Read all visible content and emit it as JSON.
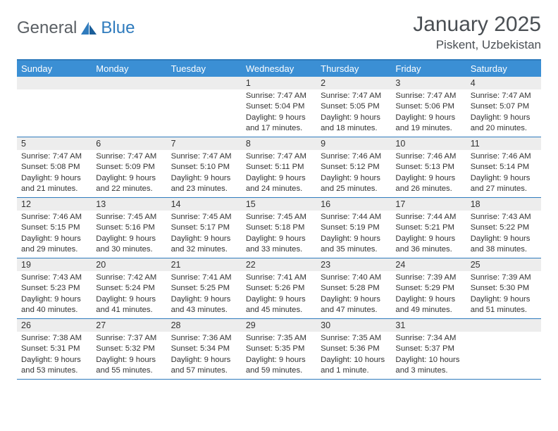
{
  "brand": {
    "part1": "General",
    "part2": "Blue"
  },
  "title": "January 2025",
  "location": "Piskent, Uzbekistan",
  "colors": {
    "header_bg": "#3b8fd4",
    "rule": "#2f7bbd",
    "daynum_bg": "#ededed",
    "text": "#333333",
    "title_text": "#4a4f54"
  },
  "day_names": [
    "Sunday",
    "Monday",
    "Tuesday",
    "Wednesday",
    "Thursday",
    "Friday",
    "Saturday"
  ],
  "weeks": [
    [
      {
        "n": "",
        "lines": []
      },
      {
        "n": "",
        "lines": []
      },
      {
        "n": "",
        "lines": []
      },
      {
        "n": "1",
        "lines": [
          "Sunrise: 7:47 AM",
          "Sunset: 5:04 PM",
          "Daylight: 9 hours",
          "and 17 minutes."
        ]
      },
      {
        "n": "2",
        "lines": [
          "Sunrise: 7:47 AM",
          "Sunset: 5:05 PM",
          "Daylight: 9 hours",
          "and 18 minutes."
        ]
      },
      {
        "n": "3",
        "lines": [
          "Sunrise: 7:47 AM",
          "Sunset: 5:06 PM",
          "Daylight: 9 hours",
          "and 19 minutes."
        ]
      },
      {
        "n": "4",
        "lines": [
          "Sunrise: 7:47 AM",
          "Sunset: 5:07 PM",
          "Daylight: 9 hours",
          "and 20 minutes."
        ]
      }
    ],
    [
      {
        "n": "5",
        "lines": [
          "Sunrise: 7:47 AM",
          "Sunset: 5:08 PM",
          "Daylight: 9 hours",
          "and 21 minutes."
        ]
      },
      {
        "n": "6",
        "lines": [
          "Sunrise: 7:47 AM",
          "Sunset: 5:09 PM",
          "Daylight: 9 hours",
          "and 22 minutes."
        ]
      },
      {
        "n": "7",
        "lines": [
          "Sunrise: 7:47 AM",
          "Sunset: 5:10 PM",
          "Daylight: 9 hours",
          "and 23 minutes."
        ]
      },
      {
        "n": "8",
        "lines": [
          "Sunrise: 7:47 AM",
          "Sunset: 5:11 PM",
          "Daylight: 9 hours",
          "and 24 minutes."
        ]
      },
      {
        "n": "9",
        "lines": [
          "Sunrise: 7:46 AM",
          "Sunset: 5:12 PM",
          "Daylight: 9 hours",
          "and 25 minutes."
        ]
      },
      {
        "n": "10",
        "lines": [
          "Sunrise: 7:46 AM",
          "Sunset: 5:13 PM",
          "Daylight: 9 hours",
          "and 26 minutes."
        ]
      },
      {
        "n": "11",
        "lines": [
          "Sunrise: 7:46 AM",
          "Sunset: 5:14 PM",
          "Daylight: 9 hours",
          "and 27 minutes."
        ]
      }
    ],
    [
      {
        "n": "12",
        "lines": [
          "Sunrise: 7:46 AM",
          "Sunset: 5:15 PM",
          "Daylight: 9 hours",
          "and 29 minutes."
        ]
      },
      {
        "n": "13",
        "lines": [
          "Sunrise: 7:45 AM",
          "Sunset: 5:16 PM",
          "Daylight: 9 hours",
          "and 30 minutes."
        ]
      },
      {
        "n": "14",
        "lines": [
          "Sunrise: 7:45 AM",
          "Sunset: 5:17 PM",
          "Daylight: 9 hours",
          "and 32 minutes."
        ]
      },
      {
        "n": "15",
        "lines": [
          "Sunrise: 7:45 AM",
          "Sunset: 5:18 PM",
          "Daylight: 9 hours",
          "and 33 minutes."
        ]
      },
      {
        "n": "16",
        "lines": [
          "Sunrise: 7:44 AM",
          "Sunset: 5:19 PM",
          "Daylight: 9 hours",
          "and 35 minutes."
        ]
      },
      {
        "n": "17",
        "lines": [
          "Sunrise: 7:44 AM",
          "Sunset: 5:21 PM",
          "Daylight: 9 hours",
          "and 36 minutes."
        ]
      },
      {
        "n": "18",
        "lines": [
          "Sunrise: 7:43 AM",
          "Sunset: 5:22 PM",
          "Daylight: 9 hours",
          "and 38 minutes."
        ]
      }
    ],
    [
      {
        "n": "19",
        "lines": [
          "Sunrise: 7:43 AM",
          "Sunset: 5:23 PM",
          "Daylight: 9 hours",
          "and 40 minutes."
        ]
      },
      {
        "n": "20",
        "lines": [
          "Sunrise: 7:42 AM",
          "Sunset: 5:24 PM",
          "Daylight: 9 hours",
          "and 41 minutes."
        ]
      },
      {
        "n": "21",
        "lines": [
          "Sunrise: 7:41 AM",
          "Sunset: 5:25 PM",
          "Daylight: 9 hours",
          "and 43 minutes."
        ]
      },
      {
        "n": "22",
        "lines": [
          "Sunrise: 7:41 AM",
          "Sunset: 5:26 PM",
          "Daylight: 9 hours",
          "and 45 minutes."
        ]
      },
      {
        "n": "23",
        "lines": [
          "Sunrise: 7:40 AM",
          "Sunset: 5:28 PM",
          "Daylight: 9 hours",
          "and 47 minutes."
        ]
      },
      {
        "n": "24",
        "lines": [
          "Sunrise: 7:39 AM",
          "Sunset: 5:29 PM",
          "Daylight: 9 hours",
          "and 49 minutes."
        ]
      },
      {
        "n": "25",
        "lines": [
          "Sunrise: 7:39 AM",
          "Sunset: 5:30 PM",
          "Daylight: 9 hours",
          "and 51 minutes."
        ]
      }
    ],
    [
      {
        "n": "26",
        "lines": [
          "Sunrise: 7:38 AM",
          "Sunset: 5:31 PM",
          "Daylight: 9 hours",
          "and 53 minutes."
        ]
      },
      {
        "n": "27",
        "lines": [
          "Sunrise: 7:37 AM",
          "Sunset: 5:32 PM",
          "Daylight: 9 hours",
          "and 55 minutes."
        ]
      },
      {
        "n": "28",
        "lines": [
          "Sunrise: 7:36 AM",
          "Sunset: 5:34 PM",
          "Daylight: 9 hours",
          "and 57 minutes."
        ]
      },
      {
        "n": "29",
        "lines": [
          "Sunrise: 7:35 AM",
          "Sunset: 5:35 PM",
          "Daylight: 9 hours",
          "and 59 minutes."
        ]
      },
      {
        "n": "30",
        "lines": [
          "Sunrise: 7:35 AM",
          "Sunset: 5:36 PM",
          "Daylight: 10 hours",
          "and 1 minute."
        ]
      },
      {
        "n": "31",
        "lines": [
          "Sunrise: 7:34 AM",
          "Sunset: 5:37 PM",
          "Daylight: 10 hours",
          "and 3 minutes."
        ]
      },
      {
        "n": "",
        "lines": []
      }
    ]
  ]
}
